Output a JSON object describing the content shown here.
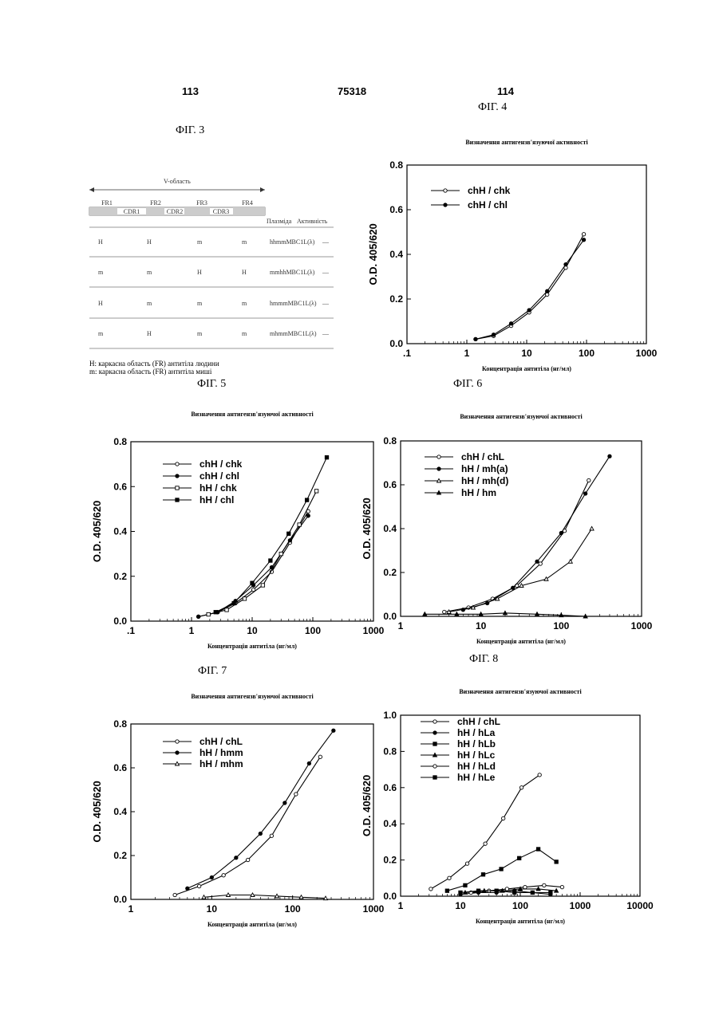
{
  "header": {
    "left_page": "113",
    "center": "75318",
    "right_page": "114"
  },
  "fig3": {
    "label": "ФІГ. 3",
    "vregion": "V-область",
    "segments": [
      "FR1",
      "CDR1",
      "FR2",
      "CDR2",
      "FR3",
      "CDR3",
      "FR4"
    ],
    "top_labels": [
      "FR1",
      "FR2",
      "FR3",
      "FR4"
    ],
    "cdr_labels": [
      "CDR1",
      "CDR2",
      "CDR3"
    ],
    "col_plasmid": "Плазміда",
    "col_activity": "Активність",
    "rows": [
      {
        "c1": "H",
        "c2": "H",
        "c3": "m",
        "c4": "m",
        "plasmid": "hhmmMBC1L(λ)",
        "activity": "—"
      },
      {
        "c1": "m",
        "c2": "m",
        "c3": "H",
        "c4": "H",
        "plasmid": "mmhhMBC1L(λ)",
        "activity": "—"
      },
      {
        "c1": "H",
        "c2": "m",
        "c3": "m",
        "c4": "m",
        "plasmid": "hmmmMBC1L(λ)",
        "activity": "—"
      },
      {
        "c1": "m",
        "c2": "H",
        "c3": "m",
        "c4": "m",
        "plasmid": "mhmmMBC1L(λ)",
        "activity": "—"
      }
    ],
    "note1": "H: каркасна область (FR) антитіла людини",
    "note2": "m: каркасна область (FR) антитіла миші"
  },
  "labels": {
    "fig4": "ФІГ. 4",
    "fig5": "ФІГ. 5",
    "fig6": "ФІГ. 6",
    "fig7": "ФІГ. 7",
    "fig8": "ФІГ. 8"
  },
  "chart_data": [
    {
      "id": "fig4",
      "type": "line",
      "scale": "log-x",
      "title": "Визначення антигензв'язуючої активності",
      "xlabel": "Концентрація антитіла (нг/мл)",
      "ylabel": "O.D. 405/620",
      "xlim": [
        0.1,
        1000
      ],
      "ylim": [
        0,
        0.8
      ],
      "xticks": [
        {
          "v": 0.1,
          "t": ".1"
        },
        {
          "v": 1,
          "t": "1"
        },
        {
          "v": 10,
          "t": "10"
        },
        {
          "v": 100,
          "t": "100"
        },
        {
          "v": 1000,
          "t": "1000"
        }
      ],
      "yticks": [
        {
          "v": 0,
          "t": "0.0"
        },
        {
          "v": 0.2,
          "t": "0.2"
        },
        {
          "v": 0.4,
          "t": "0.4"
        },
        {
          "v": 0.6,
          "t": "0.6"
        },
        {
          "v": 0.8,
          "t": "0.8"
        }
      ],
      "series": [
        {
          "name": "chH / chk",
          "marker": "open-circle",
          "x": [
            1.4,
            2.8,
            5.5,
            11,
            22,
            45,
            90
          ],
          "y": [
            0.02,
            0.035,
            0.08,
            0.14,
            0.22,
            0.34,
            0.49
          ]
        },
        {
          "name": "chH / chl",
          "marker": "filled-circle",
          "x": [
            1.4,
            2.8,
            5.5,
            11,
            22,
            45,
            90
          ],
          "y": [
            0.02,
            0.04,
            0.09,
            0.15,
            0.235,
            0.355,
            0.465
          ]
        }
      ]
    },
    {
      "id": "fig5",
      "type": "line",
      "scale": "log-x",
      "title": "Визначення антигензв'язуючої активності",
      "xlabel": "Концентрація антитіла (нг/мл)",
      "ylabel": "O.D. 405/620",
      "xlim": [
        0.1,
        1000
      ],
      "ylim": [
        0,
        0.8
      ],
      "xticks": [
        {
          "v": 0.1,
          "t": ".1"
        },
        {
          "v": 1,
          "t": "1"
        },
        {
          "v": 10,
          "t": "10"
        },
        {
          "v": 100,
          "t": "100"
        },
        {
          "v": 1000,
          "t": "1000"
        }
      ],
      "yticks": [
        {
          "v": 0,
          "t": "0.0"
        },
        {
          "v": 0.2,
          "t": "0.2"
        },
        {
          "v": 0.4,
          "t": "0.4"
        },
        {
          "v": 0.6,
          "t": "0.6"
        },
        {
          "v": 0.8,
          "t": "0.8"
        }
      ],
      "series": [
        {
          "name": "chH / chk",
          "marker": "open-circle",
          "x": [
            1.3,
            2.7,
            5.3,
            10.5,
            21,
            42,
            84
          ],
          "y": [
            0.02,
            0.04,
            0.08,
            0.14,
            0.22,
            0.35,
            0.49
          ]
        },
        {
          "name": "chH / chl",
          "marker": "filled-circle",
          "x": [
            1.3,
            2.7,
            5.3,
            10.5,
            21,
            42,
            84
          ],
          "y": [
            0.02,
            0.04,
            0.09,
            0.16,
            0.24,
            0.36,
            0.47
          ]
        },
        {
          "name": "hH / chk",
          "marker": "open-square",
          "x": [
            1.9,
            3.8,
            7.5,
            15,
            30,
            60,
            115
          ],
          "y": [
            0.03,
            0.05,
            0.1,
            0.16,
            0.3,
            0.43,
            0.58
          ]
        },
        {
          "name": "hH / chl",
          "marker": "filled-square",
          "x": [
            2.5,
            5,
            10,
            20,
            40,
            80,
            170
          ],
          "y": [
            0.04,
            0.08,
            0.17,
            0.27,
            0.39,
            0.54,
            0.73
          ]
        }
      ]
    },
    {
      "id": "fig6",
      "type": "line",
      "scale": "log-x",
      "title": "Визначення антигензв'язуючої активності",
      "xlabel": "Концентрація антитіла (нг/мл)",
      "ylabel": "O.D. 405/620",
      "xlim": [
        1,
        1000
      ],
      "ylim": [
        0,
        0.8
      ],
      "xticks": [
        {
          "v": 1,
          "t": "1"
        },
        {
          "v": 10,
          "t": "10"
        },
        {
          "v": 100,
          "t": "100"
        },
        {
          "v": 1000,
          "t": "1000"
        }
      ],
      "yticks": [
        {
          "v": 0,
          "t": "0.0"
        },
        {
          "v": 0.2,
          "t": "0.2"
        },
        {
          "v": 0.4,
          "t": "0.4"
        },
        {
          "v": 0.6,
          "t": "0.6"
        },
        {
          "v": 0.8,
          "t": "0.8"
        }
      ],
      "series": [
        {
          "name": "chH / chL",
          "marker": "open-circle",
          "x": [
            3.5,
            7,
            14,
            28,
            55,
            110,
            220
          ],
          "y": [
            0.02,
            0.04,
            0.08,
            0.14,
            0.24,
            0.39,
            0.62
          ]
        },
        {
          "name": "hH / mh(a)",
          "marker": "filled-circle",
          "x": [
            6,
            12,
            25,
            50,
            100,
            200,
            400
          ],
          "y": [
            0.03,
            0.06,
            0.13,
            0.25,
            0.38,
            0.56,
            0.73
          ]
        },
        {
          "name": "hH / mh(d)",
          "marker": "open-triangle",
          "x": [
            4,
            8,
            16,
            32,
            65,
            130,
            240
          ],
          "y": [
            0.02,
            0.04,
            0.08,
            0.14,
            0.17,
            0.25,
            0.4
          ]
        },
        {
          "name": "hH / hm",
          "marker": "filled-triangle",
          "x": [
            2,
            5,
            10,
            20,
            50,
            100,
            200
          ],
          "y": [
            0.01,
            0.01,
            0.01,
            0.015,
            0.01,
            0.005,
            0.0
          ]
        }
      ]
    },
    {
      "id": "fig7",
      "type": "line",
      "scale": "log-x",
      "title": "Визначення антигензв'язуючої активності",
      "xlabel": "Концентрація антитіла (нг/мл)",
      "ylabel": "O.D. 405/620",
      "xlim": [
        1,
        1000
      ],
      "ylim": [
        0,
        0.8
      ],
      "xticks": [
        {
          "v": 1,
          "t": "1"
        },
        {
          "v": 10,
          "t": "10"
        },
        {
          "v": 100,
          "t": "100"
        },
        {
          "v": 1000,
          "t": "1000"
        }
      ],
      "yticks": [
        {
          "v": 0,
          "t": "0.0"
        },
        {
          "v": 0.2,
          "t": "0.2"
        },
        {
          "v": 0.4,
          "t": "0.4"
        },
        {
          "v": 0.6,
          "t": "0.6"
        },
        {
          "v": 0.8,
          "t": "0.8"
        }
      ],
      "series": [
        {
          "name": "chH / chL",
          "marker": "open-circle",
          "x": [
            3.5,
            7,
            14,
            28,
            55,
            110,
            220
          ],
          "y": [
            0.02,
            0.06,
            0.11,
            0.18,
            0.29,
            0.48,
            0.65
          ]
        },
        {
          "name": "hH / hmm",
          "marker": "filled-circle",
          "x": [
            5,
            10,
            20,
            40,
            80,
            160,
            320
          ],
          "y": [
            0.05,
            0.1,
            0.19,
            0.3,
            0.44,
            0.62,
            0.77
          ]
        },
        {
          "name": "hH / mhm",
          "marker": "open-triangle",
          "x": [
            8,
            16,
            32,
            64,
            128,
            256
          ],
          "y": [
            0.01,
            0.02,
            0.02,
            0.015,
            0.01,
            0.005
          ]
        }
      ]
    },
    {
      "id": "fig8",
      "type": "line",
      "scale": "log-x",
      "title": "Визначення антигензв'язуючої активності",
      "xlabel": "Концентрація антитіла (нг/мл)",
      "ylabel": "O.D. 405/620",
      "xlim": [
        1,
        10000
      ],
      "ylim": [
        0,
        1.0
      ],
      "xticks": [
        {
          "v": 1,
          "t": "1"
        },
        {
          "v": 10,
          "t": "10"
        },
        {
          "v": 100,
          "t": "100"
        },
        {
          "v": 1000,
          "t": "1000"
        },
        {
          "v": 10000,
          "t": "10000"
        }
      ],
      "yticks": [
        {
          "v": 0,
          "t": "0.0"
        },
        {
          "v": 0.2,
          "t": "0.2"
        },
        {
          "v": 0.4,
          "t": "0.4"
        },
        {
          "v": 0.6,
          "t": "0.6"
        },
        {
          "v": 0.8,
          "t": "0.8"
        },
        {
          "v": 1,
          "t": "1.0"
        }
      ],
      "series": [
        {
          "name": "chH / chL",
          "marker": "open-circle",
          "x": [
            3.2,
            6.5,
            13,
            26,
            52,
            105,
            210
          ],
          "y": [
            0.04,
            0.1,
            0.18,
            0.29,
            0.43,
            0.6,
            0.67
          ]
        },
        {
          "name": "hH / hLa",
          "marker": "filled-circle",
          "x": [
            10,
            20,
            40,
            80,
            160,
            320
          ],
          "y": [
            0.01,
            0.02,
            0.02,
            0.03,
            0.02,
            0.01
          ]
        },
        {
          "name": "hH / hLb",
          "marker": "filled-square",
          "x": [
            6,
            12,
            24,
            48,
            96,
            200,
            400
          ],
          "y": [
            0.03,
            0.06,
            0.12,
            0.15,
            0.21,
            0.26,
            0.19
          ]
        },
        {
          "name": "hH / hLc",
          "marker": "filled-triangle",
          "x": [
            12,
            25,
            50,
            100,
            200,
            400
          ],
          "y": [
            0.02,
            0.03,
            0.03,
            0.04,
            0.04,
            0.03
          ]
        },
        {
          "name": "hH / hLd",
          "marker": "open-circle",
          "x": [
            15,
            30,
            60,
            120,
            250,
            500
          ],
          "y": [
            0.02,
            0.03,
            0.04,
            0.05,
            0.06,
            0.05
          ]
        },
        {
          "name": "hH / hLe",
          "marker": "filled-square",
          "x": [
            10,
            20,
            40,
            80,
            160,
            320
          ],
          "y": [
            0.02,
            0.03,
            0.03,
            0.02,
            0.02,
            0.02
          ]
        }
      ]
    }
  ]
}
